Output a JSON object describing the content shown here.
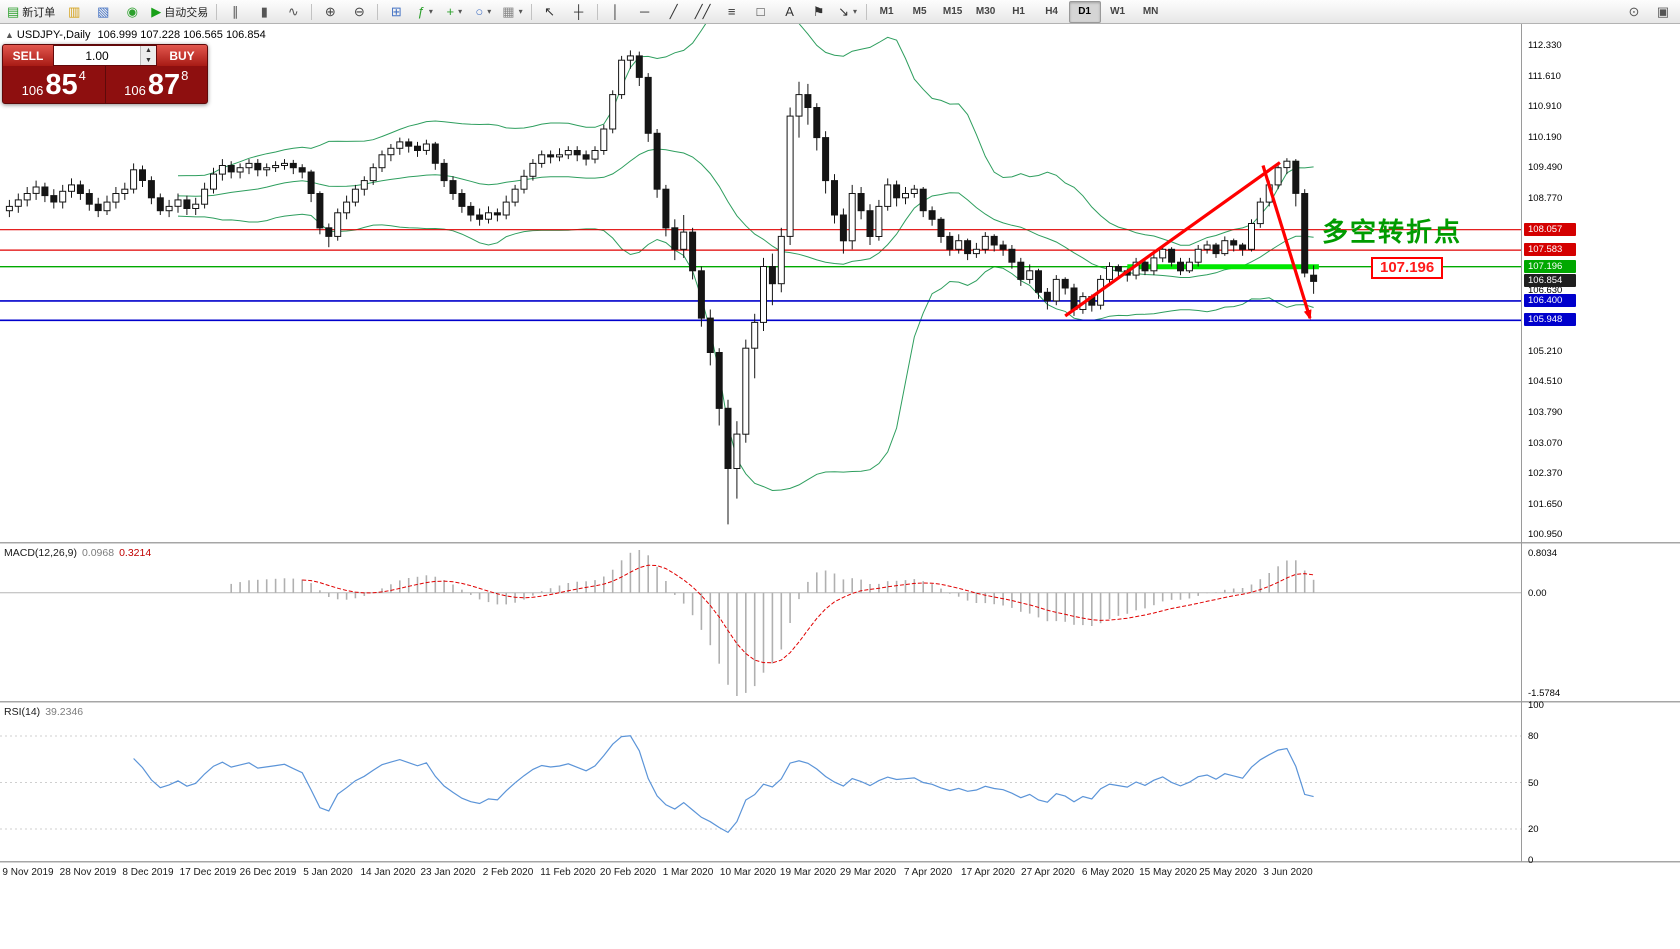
{
  "window": {
    "symbol_title": "USDJPY-,Daily",
    "ohlc_text": "106.999 107.228 106.565 106.854"
  },
  "toolbar": {
    "left": [
      {
        "name": "new-order",
        "glyph": "▤",
        "color": "#2ca02c",
        "label": "新订单"
      },
      {
        "name": "charts-bar",
        "glyph": "▥",
        "color": "#d4a017"
      },
      {
        "name": "profiles",
        "glyph": "▧",
        "color": "#4472c4"
      },
      {
        "name": "refresh",
        "glyph": "◉",
        "color": "#2ca02c"
      },
      {
        "name": "auto-trading",
        "glyph": "▶",
        "color": "#18a018",
        "label": "自动交易"
      },
      {
        "sep": true
      },
      {
        "name": "bar-chart",
        "glyph": "∥",
        "color": "#555555"
      },
      {
        "name": "candlestick-chart",
        "glyph": "▮",
        "color": "#555555"
      },
      {
        "name": "line-chart",
        "glyph": "∿",
        "color": "#555555"
      },
      {
        "sep": true
      },
      {
        "name": "zoom-in",
        "glyph": "⊕",
        "color": "#444444"
      },
      {
        "name": "zoom-out",
        "glyph": "⊖",
        "color": "#444444"
      },
      {
        "sep": true
      },
      {
        "name": "tile-windows",
        "glyph": "⊞",
        "color": "#4472c4"
      },
      {
        "name": "indicators",
        "glyph": "ƒ",
        "color": "#2ca02c",
        "dropdown": true
      },
      {
        "name": "add-indicator",
        "glyph": "+",
        "color": "#2ca02c",
        "dropdown": true
      },
      {
        "name": "periods",
        "glyph": "○",
        "color": "#4472c4",
        "dropdown": true
      },
      {
        "name": "templates",
        "glyph": "▦",
        "color": "#888888",
        "dropdown": true
      },
      {
        "sep": true
      },
      {
        "name": "cursor",
        "glyph": "↖",
        "color": "#333333"
      },
      {
        "name": "crosshair",
        "glyph": "┼",
        "color": "#333333"
      },
      {
        "sep": true
      },
      {
        "name": "vertical-line",
        "glyph": "│",
        "color": "#333333"
      },
      {
        "name": "horizontal-line",
        "glyph": "─",
        "color": "#333333"
      },
      {
        "name": "trendline",
        "glyph": "╱",
        "color": "#333333"
      },
      {
        "name": "channel",
        "glyph": "╱╱",
        "color": "#333333"
      },
      {
        "name": "fibonacci",
        "glyph": "≡",
        "color": "#333333"
      },
      {
        "name": "shapes",
        "glyph": "□",
        "color": "#333333"
      },
      {
        "name": "text",
        "glyph": "A",
        "color": "#333333"
      },
      {
        "name": "label",
        "glyph": "⚑",
        "color": "#333333"
      },
      {
        "name": "arrows",
        "glyph": "↘",
        "color": "#333333",
        "dropdown": true
      },
      {
        "sep": true
      }
    ],
    "timeframes": [
      {
        "label": "M1"
      },
      {
        "label": "M5"
      },
      {
        "label": "M15"
      },
      {
        "label": "M30"
      },
      {
        "label": "H1"
      },
      {
        "label": "H4"
      },
      {
        "label": "D1",
        "active": true
      },
      {
        "label": "W1"
      },
      {
        "label": "MN"
      }
    ],
    "right": [
      {
        "name": "search",
        "glyph": "⊙",
        "color": "#555555"
      },
      {
        "name": "layout",
        "glyph": "▣",
        "color": "#555555"
      }
    ]
  },
  "trade_panel": {
    "sell_label": "SELL",
    "buy_label": "BUY",
    "volume": "1.00",
    "bid_prefix": "106",
    "bid_big": "85",
    "bid_sup": "4",
    "ask_prefix": "106",
    "ask_big": "87",
    "ask_sup": "8"
  },
  "annotations": {
    "turning_point": "多空转折点",
    "price_callout": "107.196"
  },
  "macd": {
    "label": "MACD(12,26,9)",
    "value_main": "0.0968",
    "value_signal": "0.3214",
    "axis_top": "0.8034",
    "axis_zero": "0.00",
    "axis_bottom": "-1.5784"
  },
  "rsi": {
    "label": "RSI(14)",
    "value": "39.2346",
    "levels": [
      100,
      80,
      50,
      20,
      0
    ]
  },
  "dates": [
    "9 Nov 2019",
    "28 Nov 2019",
    "8 Dec 2019",
    "17 Dec 2019",
    "26 Dec 2019",
    "5 Jan 2020",
    "14 Jan 2020",
    "23 Jan 2020",
    "2 Feb 2020",
    "11 Feb 2020",
    "20 Feb 2020",
    "1 Mar 2020",
    "10 Mar 2020",
    "19 Mar 2020",
    "29 Mar 2020",
    "7 Apr 2020",
    "17 Apr 2020",
    "27 Apr 2020",
    "6 May 2020",
    "15 May 2020",
    "25 May 2020",
    "3 Jun 2020"
  ],
  "chart_data": {
    "type": "candlestick",
    "symbol": "USDJPY",
    "timeframe": "D1",
    "price_range": [
      100.79,
      112.82
    ],
    "y_axis_labels": [
      112.33,
      111.61,
      110.91,
      110.19,
      109.49,
      108.77,
      106.63,
      105.21,
      104.51,
      103.79,
      103.07,
      102.37,
      101.65,
      100.95
    ],
    "price_tags": [
      {
        "price": 108.057,
        "color": "#d40000"
      },
      {
        "price": 107.583,
        "color": "#d40000"
      },
      {
        "price": 107.196,
        "color": "#00a800"
      },
      {
        "price": 106.854,
        "color": "#1f1f1f",
        "current": true
      },
      {
        "price": 106.4,
        "color": "#0000cc"
      },
      {
        "price": 105.948,
        "color": "#0000cc"
      }
    ],
    "hlines": [
      {
        "price": 108.057,
        "color": "#e00000",
        "width": 1.2
      },
      {
        "price": 107.583,
        "color": "#e00000",
        "width": 1.2
      },
      {
        "price": 107.196,
        "color": "#00aa00",
        "width": 1.4
      },
      {
        "price": 106.4,
        "color": "#0000cc",
        "width": 1.6
      },
      {
        "price": 105.948,
        "color": "#0000cc",
        "width": 1.6
      }
    ],
    "support_segment": {
      "price": 107.196,
      "from_bar": 126,
      "to_bar": 147.6,
      "color": "#00e800",
      "width": 5
    },
    "trendlines": [
      {
        "x1_bar": 119,
        "y1_price": 106.05,
        "x2_bar": 143.2,
        "y2_price": 109.62,
        "color": "#ff0000",
        "width": 3.2
      },
      {
        "x1_bar": 141.3,
        "y1_price": 109.55,
        "x2_bar": 146.6,
        "y2_price": 106.0,
        "color": "#ff0000",
        "width": 3.2,
        "arrow": true
      }
    ],
    "bollinger": {
      "period": 20,
      "deviation": 2,
      "color": "#2e9e5e"
    },
    "macd_params": {
      "fast": 12,
      "slow": 26,
      "signal": 9
    },
    "rsi_params": {
      "period": 14
    },
    "ohlc": [
      [
        108.5,
        108.75,
        108.35,
        108.6
      ],
      [
        108.6,
        108.9,
        108.45,
        108.75
      ],
      [
        108.75,
        109.05,
        108.6,
        108.9
      ],
      [
        108.9,
        109.2,
        108.75,
        109.05
      ],
      [
        109.05,
        109.15,
        108.7,
        108.85
      ],
      [
        108.85,
        109.0,
        108.55,
        108.7
      ],
      [
        108.7,
        109.1,
        108.55,
        108.95
      ],
      [
        108.95,
        109.25,
        108.8,
        109.1
      ],
      [
        109.1,
        109.2,
        108.75,
        108.9
      ],
      [
        108.9,
        109.0,
        108.5,
        108.65
      ],
      [
        108.65,
        108.8,
        108.35,
        108.5
      ],
      [
        108.5,
        108.85,
        108.4,
        108.7
      ],
      [
        108.7,
        109.05,
        108.55,
        108.9
      ],
      [
        108.9,
        109.15,
        108.75,
        109.0
      ],
      [
        109.0,
        109.6,
        108.9,
        109.45
      ],
      [
        109.45,
        109.55,
        109.05,
        109.2
      ],
      [
        109.2,
        109.3,
        108.65,
        108.8
      ],
      [
        108.8,
        108.9,
        108.4,
        108.5
      ],
      [
        108.5,
        108.75,
        108.35,
        108.6
      ],
      [
        108.6,
        108.9,
        108.45,
        108.75
      ],
      [
        108.75,
        108.85,
        108.4,
        108.55
      ],
      [
        108.55,
        108.8,
        108.4,
        108.65
      ],
      [
        108.65,
        109.15,
        108.55,
        109.0
      ],
      [
        109.0,
        109.5,
        108.9,
        109.35
      ],
      [
        109.35,
        109.7,
        109.2,
        109.55
      ],
      [
        109.55,
        109.65,
        109.25,
        109.4
      ],
      [
        109.4,
        109.6,
        109.25,
        109.5
      ],
      [
        109.5,
        109.7,
        109.35,
        109.6
      ],
      [
        109.6,
        109.7,
        109.3,
        109.45
      ],
      [
        109.45,
        109.6,
        109.3,
        109.5
      ],
      [
        109.5,
        109.65,
        109.4,
        109.55
      ],
      [
        109.55,
        109.7,
        109.45,
        109.6
      ],
      [
        109.6,
        109.68,
        109.35,
        109.5
      ],
      [
        109.5,
        109.58,
        109.25,
        109.4
      ],
      [
        109.4,
        109.45,
        108.7,
        108.9
      ],
      [
        108.9,
        108.95,
        107.95,
        108.1
      ],
      [
        108.1,
        108.2,
        107.65,
        107.9
      ],
      [
        107.9,
        108.55,
        107.8,
        108.45
      ],
      [
        108.45,
        108.85,
        108.3,
        108.7
      ],
      [
        108.7,
        109.1,
        108.6,
        109.0
      ],
      [
        109.0,
        109.3,
        108.85,
        109.2
      ],
      [
        109.2,
        109.6,
        109.1,
        109.5
      ],
      [
        109.5,
        109.9,
        109.4,
        109.8
      ],
      [
        109.8,
        110.05,
        109.65,
        109.95
      ],
      [
        109.95,
        110.2,
        109.8,
        110.1
      ],
      [
        110.1,
        110.18,
        109.85,
        110.0
      ],
      [
        110.0,
        110.1,
        109.75,
        109.9
      ],
      [
        109.9,
        110.15,
        109.8,
        110.05
      ],
      [
        110.05,
        110.1,
        109.45,
        109.6
      ],
      [
        109.6,
        109.7,
        109.05,
        109.2
      ],
      [
        109.2,
        109.3,
        108.75,
        108.9
      ],
      [
        108.9,
        109.0,
        108.45,
        108.6
      ],
      [
        108.6,
        108.7,
        108.25,
        108.4
      ],
      [
        108.4,
        108.55,
        108.15,
        108.3
      ],
      [
        108.3,
        108.6,
        108.2,
        108.45
      ],
      [
        108.45,
        108.55,
        108.25,
        108.4
      ],
      [
        108.4,
        108.85,
        108.3,
        108.7
      ],
      [
        108.7,
        109.1,
        108.6,
        109.0
      ],
      [
        109.0,
        109.45,
        108.9,
        109.3
      ],
      [
        109.3,
        109.7,
        109.2,
        109.6
      ],
      [
        109.6,
        109.9,
        109.5,
        109.8
      ],
      [
        109.8,
        109.9,
        109.6,
        109.75
      ],
      [
        109.75,
        109.95,
        109.65,
        109.8
      ],
      [
        109.8,
        110.0,
        109.7,
        109.9
      ],
      [
        109.9,
        110.0,
        109.65,
        109.8
      ],
      [
        109.8,
        109.9,
        109.55,
        109.7
      ],
      [
        109.7,
        110.0,
        109.6,
        109.9
      ],
      [
        109.9,
        110.5,
        109.8,
        110.4
      ],
      [
        110.4,
        111.3,
        110.3,
        111.2
      ],
      [
        111.2,
        112.1,
        111.1,
        112.0
      ],
      [
        112.0,
        112.23,
        111.8,
        112.1
      ],
      [
        112.1,
        112.2,
        111.4,
        111.6
      ],
      [
        111.6,
        111.7,
        110.1,
        110.3
      ],
      [
        110.3,
        110.4,
        108.8,
        109.0
      ],
      [
        109.0,
        109.1,
        107.9,
        108.1
      ],
      [
        108.1,
        108.3,
        107.35,
        107.6
      ],
      [
        107.6,
        108.4,
        107.4,
        108.0
      ],
      [
        108.0,
        108.1,
        106.9,
        107.1
      ],
      [
        107.1,
        107.2,
        105.8,
        106.0
      ],
      [
        106.0,
        106.2,
        104.9,
        105.2
      ],
      [
        105.2,
        105.3,
        103.5,
        103.9
      ],
      [
        103.9,
        104.1,
        101.2,
        102.5
      ],
      [
        102.5,
        103.6,
        101.8,
        103.3
      ],
      [
        103.3,
        105.5,
        103.1,
        105.3
      ],
      [
        105.3,
        106.1,
        104.6,
        105.9
      ],
      [
        105.9,
        107.4,
        105.7,
        107.2
      ],
      [
        107.2,
        107.5,
        106.3,
        106.8
      ],
      [
        106.8,
        108.1,
        106.6,
        107.9
      ],
      [
        107.9,
        110.9,
        107.7,
        110.7
      ],
      [
        110.7,
        111.5,
        110.2,
        111.2
      ],
      [
        111.2,
        111.45,
        110.5,
        110.9
      ],
      [
        110.9,
        111.0,
        109.9,
        110.2
      ],
      [
        110.2,
        110.35,
        108.9,
        109.2
      ],
      [
        109.2,
        109.35,
        108.2,
        108.4
      ],
      [
        108.4,
        108.55,
        107.5,
        107.8
      ],
      [
        107.8,
        109.1,
        107.6,
        108.9
      ],
      [
        108.9,
        109.05,
        108.3,
        108.5
      ],
      [
        108.5,
        108.65,
        107.7,
        107.9
      ],
      [
        107.9,
        108.75,
        107.8,
        108.6
      ],
      [
        108.6,
        109.25,
        108.5,
        109.1
      ],
      [
        109.1,
        109.2,
        108.6,
        108.8
      ],
      [
        108.8,
        109.05,
        108.65,
        108.9
      ],
      [
        108.9,
        109.1,
        108.8,
        109.0
      ],
      [
        109.0,
        109.05,
        108.35,
        108.5
      ],
      [
        108.5,
        108.6,
        108.15,
        108.3
      ],
      [
        108.3,
        108.35,
        107.75,
        107.9
      ],
      [
        107.9,
        108.0,
        107.45,
        107.6
      ],
      [
        107.6,
        107.95,
        107.5,
        107.8
      ],
      [
        107.8,
        107.85,
        107.35,
        107.5
      ],
      [
        107.5,
        107.75,
        107.4,
        107.6
      ],
      [
        107.6,
        108.0,
        107.5,
        107.9
      ],
      [
        107.9,
        107.95,
        107.55,
        107.7
      ],
      [
        107.7,
        107.8,
        107.45,
        107.6
      ],
      [
        107.6,
        107.7,
        107.15,
        107.3
      ],
      [
        107.3,
        107.4,
        106.75,
        106.9
      ],
      [
        106.9,
        107.25,
        106.8,
        107.1
      ],
      [
        107.1,
        107.15,
        106.45,
        106.6
      ],
      [
        106.6,
        106.7,
        106.2,
        106.4
      ],
      [
        106.4,
        107.0,
        106.3,
        106.9
      ],
      [
        106.9,
        106.95,
        106.55,
        106.7
      ],
      [
        106.7,
        106.8,
        106.05,
        106.2
      ],
      [
        106.2,
        106.6,
        106.1,
        106.5
      ],
      [
        106.5,
        106.55,
        106.15,
        106.3
      ],
      [
        106.3,
        107.0,
        106.2,
        106.9
      ],
      [
        106.9,
        107.3,
        106.8,
        107.2
      ],
      [
        107.2,
        107.25,
        106.95,
        107.1
      ],
      [
        107.1,
        107.15,
        106.85,
        107.0
      ],
      [
        107.0,
        107.4,
        106.9,
        107.3
      ],
      [
        107.3,
        107.35,
        107.0,
        107.1
      ],
      [
        107.1,
        107.5,
        107.0,
        107.4
      ],
      [
        107.4,
        107.7,
        107.3,
        107.6
      ],
      [
        107.6,
        107.65,
        107.2,
        107.3
      ],
      [
        107.3,
        107.4,
        107.0,
        107.1
      ],
      [
        107.1,
        107.4,
        107.05,
        107.3
      ],
      [
        107.3,
        107.7,
        107.2,
        107.6
      ],
      [
        107.6,
        107.8,
        107.5,
        107.7
      ],
      [
        107.7,
        107.75,
        107.4,
        107.5
      ],
      [
        107.5,
        107.9,
        107.45,
        107.8
      ],
      [
        107.8,
        107.85,
        107.55,
        107.7
      ],
      [
        107.7,
        107.75,
        107.45,
        107.6
      ],
      [
        107.6,
        108.3,
        107.55,
        108.2
      ],
      [
        108.2,
        108.8,
        108.1,
        108.7
      ],
      [
        108.7,
        109.2,
        108.6,
        109.1
      ],
      [
        109.1,
        109.6,
        109.0,
        109.5
      ],
      [
        109.5,
        109.72,
        109.35,
        109.65
      ],
      [
        109.65,
        109.7,
        108.6,
        108.9
      ],
      [
        108.9,
        109.0,
        106.95,
        107.05
      ],
      [
        106.999,
        107.228,
        106.565,
        106.854
      ]
    ]
  }
}
